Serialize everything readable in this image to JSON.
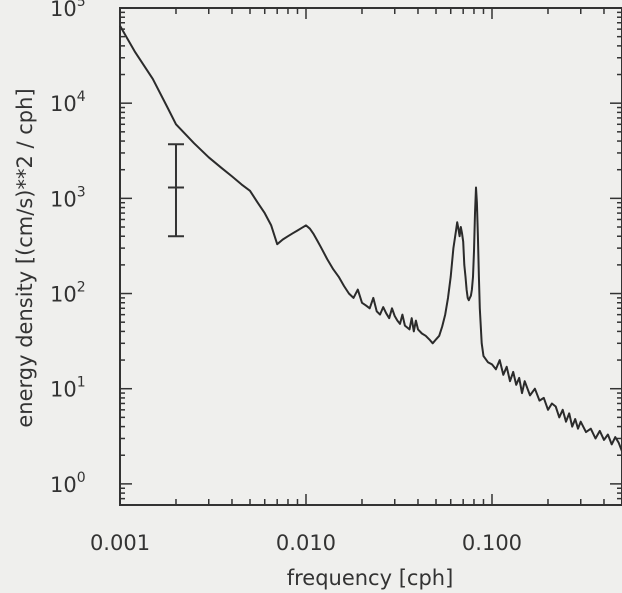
{
  "chart_data": {
    "type": "line",
    "xlabel": "frequency [cph]",
    "ylabel": "energy density [(cm/s)**2 / cph]",
    "xscale": "log",
    "yscale": "log",
    "xlim": [
      0.001,
      0.5
    ],
    "ylim": [
      0.6,
      100000
    ],
    "x_ticks": [
      {
        "value": 0.001,
        "label": "0.001"
      },
      {
        "value": 0.01,
        "label": "0.010"
      },
      {
        "value": 0.1,
        "label": "0.100"
      }
    ],
    "y_ticks": [
      {
        "value": 1,
        "base": "10",
        "exp": "0"
      },
      {
        "value": 10,
        "base": "10",
        "exp": "1"
      },
      {
        "value": 100,
        "base": "10",
        "exp": "2"
      },
      {
        "value": 1000,
        "base": "10",
        "exp": "3"
      },
      {
        "value": 10000,
        "base": "10",
        "exp": "4"
      },
      {
        "value": 100000,
        "base": "10",
        "exp": "5"
      }
    ],
    "grid": false,
    "line_color": "#2b2b2b",
    "error_bar": {
      "x": 0.002,
      "center": 1300,
      "low": 400,
      "high": 3700
    },
    "series": [
      {
        "x": [
          0.001,
          0.0012,
          0.0015,
          0.0018,
          0.002,
          0.0025,
          0.003,
          0.0035,
          0.004,
          0.0045,
          0.005,
          0.0055,
          0.006,
          0.0065,
          0.007,
          0.0075,
          0.008,
          0.0085,
          0.009,
          0.0095,
          0.01,
          0.0105,
          0.011,
          0.0115,
          0.012,
          0.013,
          0.014,
          0.015,
          0.016,
          0.017,
          0.018,
          0.019,
          0.02,
          0.021,
          0.022,
          0.023,
          0.024,
          0.025,
          0.026,
          0.027,
          0.028,
          0.029,
          0.03,
          0.031,
          0.032,
          0.033,
          0.034,
          0.035,
          0.036,
          0.037,
          0.038,
          0.039,
          0.04,
          0.042,
          0.044,
          0.046,
          0.048,
          0.05,
          0.052,
          0.054,
          0.056,
          0.058,
          0.06,
          0.062,
          0.064,
          0.065,
          0.066,
          0.067,
          0.068,
          0.069,
          0.07,
          0.071,
          0.072,
          0.073,
          0.074,
          0.075,
          0.076,
          0.077,
          0.078,
          0.079,
          0.08,
          0.081,
          0.082,
          0.083,
          0.084,
          0.085,
          0.086,
          0.088,
          0.09,
          0.095,
          0.1,
          0.105,
          0.11,
          0.115,
          0.12,
          0.125,
          0.13,
          0.135,
          0.14,
          0.145,
          0.15,
          0.16,
          0.17,
          0.18,
          0.19,
          0.2,
          0.21,
          0.22,
          0.23,
          0.24,
          0.25,
          0.26,
          0.27,
          0.28,
          0.29,
          0.3,
          0.32,
          0.34,
          0.36,
          0.38,
          0.4,
          0.42,
          0.44,
          0.46,
          0.48,
          0.5
        ],
        "y": [
          65000,
          35000,
          18000,
          9000,
          6000,
          3800,
          2700,
          2100,
          1700,
          1400,
          1200,
          900,
          700,
          520,
          330,
          370,
          400,
          430,
          460,
          490,
          520,
          480,
          420,
          360,
          310,
          230,
          180,
          150,
          120,
          100,
          90,
          110,
          80,
          75,
          70,
          90,
          65,
          60,
          72,
          62,
          55,
          70,
          58,
          52,
          48,
          60,
          46,
          44,
          42,
          55,
          40,
          52,
          42,
          38,
          36,
          33,
          30,
          33,
          36,
          45,
          60,
          90,
          150,
          300,
          450,
          560,
          480,
          400,
          500,
          430,
          350,
          200,
          150,
          110,
          90,
          85,
          90,
          95,
          110,
          150,
          280,
          700,
          1300,
          900,
          400,
          150,
          70,
          30,
          22,
          19,
          18,
          16,
          20,
          14,
          17,
          12,
          15,
          11,
          13,
          9,
          12,
          8.5,
          10,
          7.5,
          8,
          6,
          7,
          6.5,
          5,
          6,
          4.5,
          5.5,
          4,
          4.8,
          3.8,
          4.5,
          3.5,
          3.8,
          3,
          3.6,
          2.9,
          3.3,
          2.6,
          3.1,
          2.7,
          2.2
        ]
      }
    ]
  }
}
